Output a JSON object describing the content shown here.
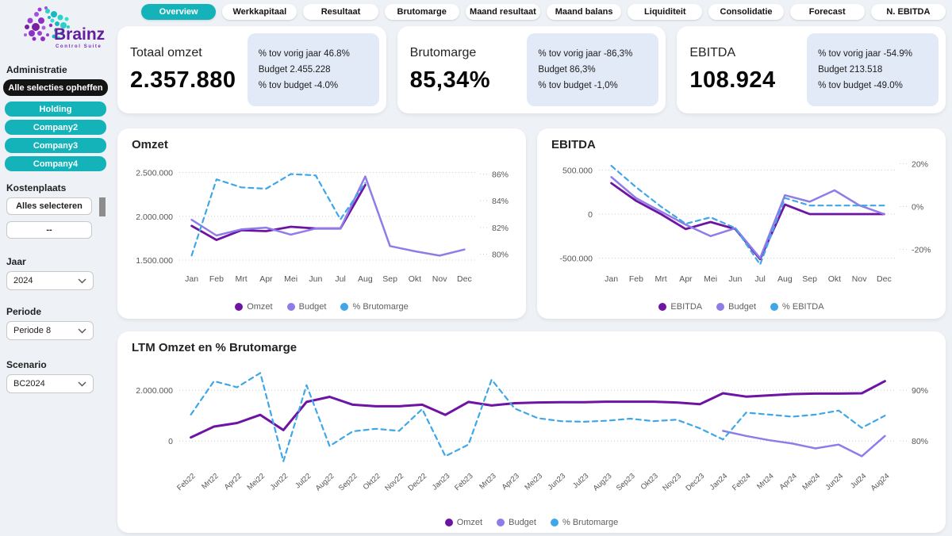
{
  "colors": {
    "teal": "#14b3b9",
    "purpleDark": "#6e14a4",
    "purpleLight": "#8f7ce8",
    "blue": "#3fa7e8",
    "pageBg": "#eef1f6",
    "kpiBoxBg": "#e2e9f7",
    "clearBtn": "#141414",
    "grid": "#cfcfcf"
  },
  "brand": {
    "name": "Brainz",
    "subtitle": "Control Suite"
  },
  "tabs": [
    {
      "label": "Overview",
      "active": true
    },
    {
      "label": "Werkkapitaal",
      "active": false
    },
    {
      "label": "Resultaat",
      "active": false
    },
    {
      "label": "Brutomarge",
      "active": false
    },
    {
      "label": "Maand resultaat",
      "active": false
    },
    {
      "label": "Maand balans",
      "active": false
    },
    {
      "label": "Liquiditeit",
      "active": false
    },
    {
      "label": "Consolidatie",
      "active": false
    },
    {
      "label": "Forecast",
      "active": false
    },
    {
      "label": "N. EBITDA",
      "active": false
    }
  ],
  "sidebar": {
    "sections": {
      "administratie": "Administratie",
      "kostenplaats": "Kostenplaats",
      "jaar": "Jaar",
      "periode": "Periode",
      "scenario": "Scenario"
    },
    "clear_selections_label": "Alle selecties opheffen",
    "companies": [
      "Holding",
      "Company2",
      "Company3",
      "Company4"
    ],
    "kostenplaats_select_all": "Alles selecteren",
    "kostenplaats_value": "--",
    "jaar_value": "2024",
    "periode_value": "Periode 8",
    "scenario_value": "BC2024"
  },
  "kpis": [
    {
      "title": "Totaal omzet",
      "value": "2.357.880",
      "details": [
        "% tov vorig jaar 46.8%",
        "Budget 2.455.228",
        "% tov budget -4.0%"
      ]
    },
    {
      "title": "Brutomarge",
      "value": "85,34%",
      "details": [
        "% tov vorig jaar -86,3%",
        "Budget 86,3%",
        "% tov budget -1,0%"
      ]
    },
    {
      "title": "EBITDA",
      "value": "108.924",
      "details": [
        "% tov vorig jaar -54.9%",
        "Budget 213.518",
        "% tov budget -49.0%"
      ]
    }
  ],
  "chart_data": [
    {
      "type": "line",
      "title": "Omzet",
      "categories": [
        "Jan",
        "Feb",
        "Mrt",
        "Apr",
        "Mei",
        "Jun",
        "Jul",
        "Aug",
        "Sep",
        "Okt",
        "Nov",
        "Dec"
      ],
      "rotated_labels": false,
      "left_axis": {
        "labels": [
          "2.500.000",
          "2.000.000",
          "1.500.000"
        ],
        "values": [
          2500000,
          2000000,
          1500000
        ],
        "min": 1400000,
        "max": 2650000
      },
      "right_axis": {
        "labels": [
          "86%",
          "84%",
          "82%",
          "80%"
        ],
        "values": [
          86,
          84,
          82,
          80
        ],
        "min": 78.9,
        "max": 87.1
      },
      "legend_position": "bottom",
      "series": [
        {
          "name": "Omzet",
          "axis": "left",
          "color": "purpleDark",
          "dash": false,
          "width": 2.8,
          "values": [
            1890000,
            1730000,
            1840000,
            1830000,
            1880000,
            1860000,
            1860000,
            2357880
          ]
        },
        {
          "name": "Budget",
          "axis": "left",
          "color": "purpleLight",
          "dash": false,
          "width": 2.5,
          "values": [
            1960000,
            1780000,
            1850000,
            1870000,
            1790000,
            1860000,
            1860000,
            2455228,
            1660000,
            1600000,
            1550000,
            1620000
          ]
        },
        {
          "name": "% Brutomarge",
          "axis": "right",
          "color": "blue",
          "dash": true,
          "width": 2.2,
          "values": [
            79.9,
            85.6,
            85.0,
            84.9,
            86.0,
            85.9,
            82.6,
            85.34
          ]
        }
      ]
    },
    {
      "type": "line",
      "title": "EBITDA",
      "categories": [
        "Jan",
        "Feb",
        "Mrt",
        "Apr",
        "Mei",
        "Jun",
        "Jul",
        "Aug",
        "Sep",
        "Okt",
        "Nov",
        "Dec"
      ],
      "rotated_labels": false,
      "left_axis": {
        "labels": [
          "500.000",
          "0",
          "-500.000"
        ],
        "values": [
          500000,
          0,
          -500000
        ],
        "min": -620000,
        "max": 620000
      },
      "right_axis": {
        "labels": [
          "20%",
          "0%",
          "-20%"
        ],
        "values": [
          20,
          0,
          -20
        ],
        "min": -29,
        "max": 22
      },
      "legend_position": "bottom",
      "series": [
        {
          "name": "EBITDA",
          "axis": "left",
          "color": "purpleDark",
          "dash": false,
          "width": 2.8,
          "values": [
            350000,
            150000,
            0,
            -170000,
            -90000,
            -170000,
            -510000,
            108924,
            0,
            0,
            0,
            0
          ]
        },
        {
          "name": "Budget",
          "axis": "left",
          "color": "purpleLight",
          "dash": false,
          "width": 2.5,
          "values": [
            420000,
            180000,
            30000,
            -120000,
            -250000,
            -160000,
            -500000,
            213518,
            140000,
            270000,
            100000,
            0
          ]
        },
        {
          "name": "% EBITDA",
          "axis": "right",
          "color": "blue",
          "dash": true,
          "width": 2.2,
          "values": [
            19,
            9,
            0,
            -8,
            -5,
            -10,
            -27,
            4,
            0.5,
            0.5,
            0.5,
            0.5
          ]
        }
      ]
    },
    {
      "type": "line",
      "title": "LTM Omzet en % Brutomarge",
      "categories": [
        "Feb22",
        "Mrt22",
        "Apr22",
        "Mei22",
        "Jun22",
        "Jul22",
        "Aug22",
        "Sep22",
        "Okt22",
        "Nov22",
        "Dec22",
        "Jan23",
        "Feb23",
        "Mrt23",
        "Apr23",
        "Mei23",
        "Jun23",
        "Jul23",
        "Aug23",
        "Sep23",
        "Okt23",
        "Nov23",
        "Dec23",
        "Jan24",
        "Feb24",
        "Mrt24",
        "Apr24",
        "Mei24",
        "Jun24",
        "Jul24",
        "Aug24"
      ],
      "rotated_labels": true,
      "left_axis": {
        "labels": [
          "2.000.000",
          "0"
        ],
        "values": [
          2000000,
          0
        ],
        "min": -900000,
        "max": 3100000
      },
      "right_axis": {
        "labels": [
          "90%",
          "80%"
        ],
        "values": [
          90,
          80
        ],
        "min": 75.5,
        "max": 95.5
      },
      "legend_position": "bottom",
      "series": [
        {
          "name": "Omzet",
          "axis": "left",
          "color": "purpleDark",
          "dash": false,
          "width": 3,
          "values": [
            140000,
            570000,
            710000,
            1030000,
            430000,
            1540000,
            1740000,
            1430000,
            1370000,
            1370000,
            1430000,
            1030000,
            1540000,
            1400000,
            1490000,
            1520000,
            1530000,
            1530000,
            1550000,
            1550000,
            1550000,
            1520000,
            1450000,
            1880000,
            1750000,
            1800000,
            1850000,
            1870000,
            1870000,
            1880000,
            2357880
          ]
        },
        {
          "name": "Budget",
          "axis": "left",
          "color": "purpleLight",
          "dash": false,
          "width": 2.5,
          "start_index": 23,
          "values": [
            400000,
            200000,
            30000,
            -100000,
            -290000,
            -140000,
            -600000,
            200000
          ]
        },
        {
          "name": "% Brutomarge",
          "axis": "right",
          "color": "blue",
          "dash": true,
          "width": 2.2,
          "values": [
            85.2,
            91.8,
            90.6,
            93.4,
            76.0,
            91.0,
            79.0,
            81.9,
            82.4,
            82.0,
            86.3,
            77.0,
            79.3,
            92.1,
            86.4,
            84.5,
            83.9,
            83.8,
            84.0,
            84.4,
            83.9,
            84.2,
            82.5,
            80.3,
            85.6,
            85.2,
            84.8,
            85.2,
            86.0,
            82.6,
            85.0
          ]
        }
      ]
    }
  ]
}
